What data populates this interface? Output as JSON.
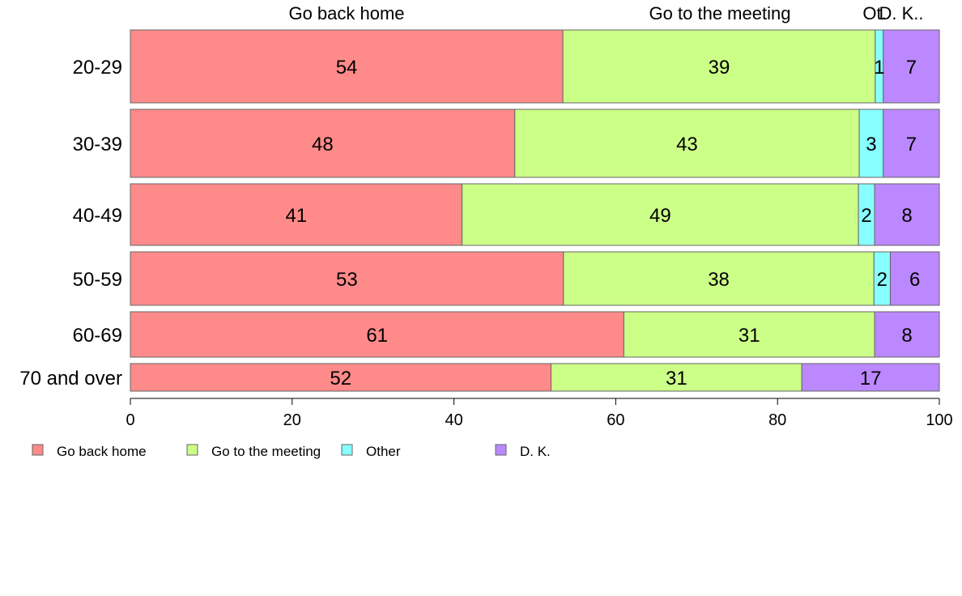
{
  "chart_data": {
    "type": "bar",
    "orientation": "horizontal",
    "stacked": true,
    "categories": [
      "20-29",
      "30-39",
      "40-49",
      "50-59",
      "60-69",
      "70 and over"
    ],
    "series": [
      {
        "name": "Go back home",
        "color": "#FF8A8A",
        "values": [
          54,
          48,
          41,
          53,
          61,
          52
        ]
      },
      {
        "name": "Go to the meeting",
        "color": "#CCFF88",
        "values": [
          39,
          43,
          49,
          38,
          31,
          31
        ]
      },
      {
        "name": "Other",
        "color": "#88FFFF",
        "values": [
          1,
          3,
          2,
          2,
          0,
          0
        ]
      },
      {
        "name": "D. K.",
        "color": "#BB88FF",
        "values": [
          7,
          7,
          8,
          6,
          8,
          17
        ]
      }
    ],
    "value_labels": [
      [
        "54",
        "39",
        "1",
        "7"
      ],
      [
        "48",
        "43",
        "3",
        "7"
      ],
      [
        "41",
        "49",
        "2",
        "8"
      ],
      [
        "53",
        "38",
        "2",
        "6"
      ],
      [
        "61",
        "31",
        "",
        "8"
      ],
      [
        "52",
        "31",
        "",
        "17"
      ]
    ],
    "top_labels": [
      "Go back home",
      "Go to the meeting",
      "Ot.",
      "D. K.."
    ],
    "xlim": [
      0,
      100
    ],
    "xticks": [
      "0",
      "20",
      "40",
      "60",
      "80",
      "100"
    ],
    "legend_position": "bottom-left",
    "legend_labels": [
      "Go back home",
      "Go to the meeting",
      "Other",
      "D. K."
    ],
    "grid": false
  }
}
